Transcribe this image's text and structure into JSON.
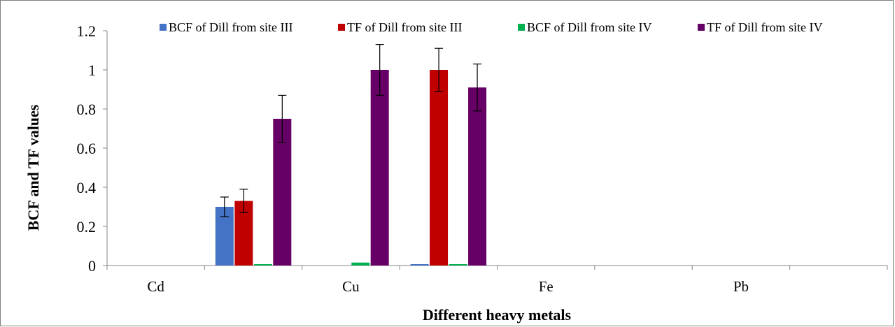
{
  "chart_data": {
    "type": "bar",
    "categories": [
      "Cd",
      "",
      "Cu",
      "",
      "Fe",
      "",
      "Pb",
      ""
    ],
    "series": [
      {
        "name": "BCF of Dill from site III",
        "color": "#4472C4",
        "values": [
          0,
          0.3,
          0,
          0.005,
          0,
          0,
          0,
          0
        ],
        "errors": [
          0,
          0.05,
          0,
          0,
          0,
          0,
          0,
          0
        ]
      },
      {
        "name": "TF of Dill from site III",
        "color": "#C00000",
        "values": [
          0,
          0.33,
          0,
          1.0,
          0,
          0,
          0,
          0
        ],
        "errors": [
          0,
          0.06,
          0,
          0.11,
          0,
          0,
          0,
          0
        ]
      },
      {
        "name": "BCF of Dill from site IV",
        "color": "#00B050",
        "values": [
          0,
          0.003,
          0.015,
          0.005,
          0,
          0,
          0,
          0
        ],
        "errors": [
          0,
          0,
          0,
          0,
          0,
          0,
          0,
          0
        ]
      },
      {
        "name": "TF of Dill from site IV",
        "color": "#660066",
        "values": [
          0,
          0.75,
          1.0,
          0.91,
          0,
          0,
          0,
          0
        ],
        "errors": [
          0,
          0.12,
          0.13,
          0.12,
          0,
          0,
          0,
          0
        ]
      }
    ],
    "xlabel": "Different heavy metals",
    "ylabel": "BCF and TF values",
    "ylim": [
      0,
      1.2
    ],
    "yticks": [
      "0",
      "0.2",
      "0.4",
      "0.6",
      "0.8",
      "1",
      "1.2"
    ],
    "grid": false,
    "legend": "top"
  }
}
